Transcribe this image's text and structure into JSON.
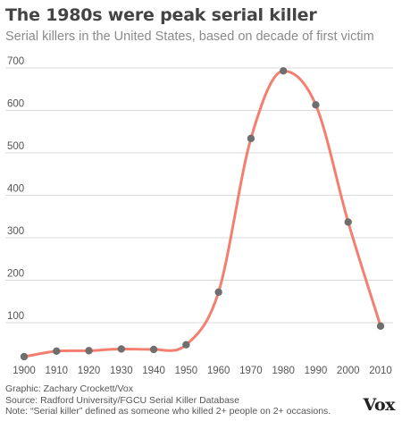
{
  "header": {
    "title": "The 1980s were peak serial killer",
    "subtitle": "Serial killers in the United States, based on decade of first victim"
  },
  "footer": {
    "graphic": "Graphic: Zachary Crockett/Vox",
    "source": "Source: Radford University/FGCU Serial Killer Database",
    "note": "Note: “Serial killer” defined as someone who killed 2+ people on 2+ occasions."
  },
  "logo": "Vox",
  "colors": {
    "line": "#f47f6f",
    "point": "#6f6f6f",
    "grid": "#d9d9d9",
    "axis_text": "#555555"
  },
  "chart_data": {
    "type": "line",
    "title": "The 1980s were peak serial killer",
    "subtitle": "Serial killers in the United States, based on decade of first victim",
    "xlabel": "",
    "ylabel": "",
    "x": [
      1900,
      1910,
      1920,
      1930,
      1940,
      1950,
      1960,
      1970,
      1980,
      1990,
      2000,
      2010
    ],
    "series": [
      {
        "values": [
          20,
          33,
          34,
          38,
          37,
          48,
          172,
          534,
          693,
          613,
          337,
          92
        ]
      }
    ],
    "x_ticks": [
      "1900",
      "1910",
      "1920",
      "1930",
      "1940",
      "1950",
      "1960",
      "1970",
      "1980",
      "1990",
      "2000",
      "2010"
    ],
    "y_ticks": [
      "100",
      "200",
      "300",
      "400",
      "500",
      "600",
      "700"
    ],
    "xlim": [
      1900,
      2010
    ],
    "ylim": [
      0,
      700
    ],
    "grid": true,
    "smooth": true,
    "legend": "none"
  }
}
